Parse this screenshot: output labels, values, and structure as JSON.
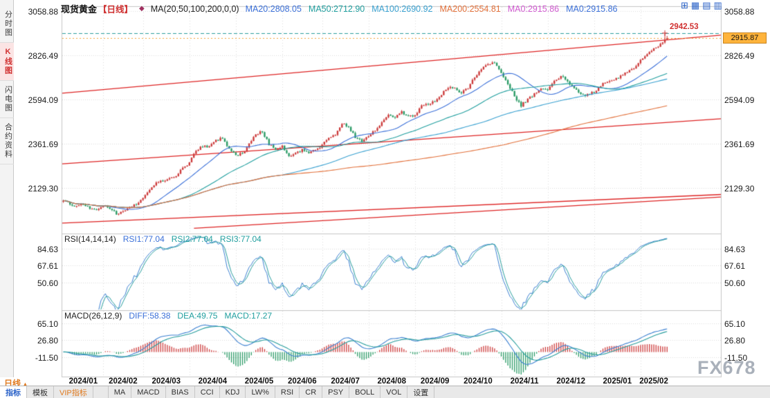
{
  "header": {
    "symbol": "现货黄金",
    "period": "【日线】",
    "indicator_icon": "◆",
    "ma_group_label": "MA(20,50,100,200,0,0)",
    "ma_items": [
      {
        "text": "MA20:2808.05",
        "color": "#3a6fd8"
      },
      {
        "text": "MA50:2712.90",
        "color": "#1f9e9e"
      },
      {
        "text": "MA100:2690.92",
        "color": "#38a0d0"
      },
      {
        "text": "MA200:2554.81",
        "color": "#e2703a"
      },
      {
        "text": "MA0:2915.86",
        "color": "#d05ad0"
      },
      {
        "text": "MA0:2915.86",
        "color": "#3a6fd8"
      }
    ]
  },
  "layout_icons": [
    {
      "name": "layout-single-icon",
      "glyph": "⊞"
    },
    {
      "name": "layout-split-2-icon",
      "glyph": "▦"
    },
    {
      "name": "layout-split-4-icon",
      "glyph": "▤"
    },
    {
      "name": "layout-split-9-icon",
      "glyph": "▥"
    }
  ],
  "sidebar": {
    "items": [
      {
        "label": "分时图",
        "name": "sidebar-item-time-share-chart",
        "active": false
      },
      {
        "label": "K线图",
        "name": "sidebar-item-kline-chart",
        "active": true
      },
      {
        "label": "闪电图",
        "name": "sidebar-item-lightning-chart",
        "active": false
      },
      {
        "label": "合约资料",
        "name": "sidebar-item-contract-info",
        "active": false
      }
    ]
  },
  "price_tag": "2915.87",
  "high_label": "2942.53",
  "watermark": "FX678",
  "bottom_bar": {
    "period_label": "日线",
    "period_arrow": "▲",
    "tabs": [
      {
        "label": "指标",
        "name": "tab-indicators",
        "active": true,
        "vip": false
      },
      {
        "label": "模板",
        "name": "tab-templates",
        "active": false,
        "vip": false
      },
      {
        "label": "VIP指标",
        "name": "tab-vip-indicators",
        "active": false,
        "vip": true
      }
    ],
    "indicator_buttons": [
      {
        "label": "MA",
        "name": "indicator-button-ma"
      },
      {
        "label": "MACD",
        "name": "indicator-button-macd"
      },
      {
        "label": "BIAS",
        "name": "indicator-button-bias"
      },
      {
        "label": "CCI",
        "name": "indicator-button-cci"
      },
      {
        "label": "KDJ",
        "name": "indicator-button-kdj"
      },
      {
        "label": "LW%",
        "name": "indicator-button-lw"
      },
      {
        "label": "RSI",
        "name": "indicator-button-rsi"
      },
      {
        "label": "CR",
        "name": "indicator-button-cr"
      },
      {
        "label": "PSY",
        "name": "indicator-button-psy"
      },
      {
        "label": "BOLL",
        "name": "indicator-button-boll"
      },
      {
        "label": "VOL",
        "name": "indicator-button-vol"
      },
      {
        "label": "设置",
        "name": "settings-button"
      }
    ]
  },
  "chart_data": {
    "type": "candlestick",
    "title": "现货黄金 日线",
    "x_labels": [
      "2024/01",
      "2024/02",
      "2024/03",
      "2024/04",
      "2024/05",
      "2024/06",
      "2024/07",
      "2024/08",
      "2024/09",
      "2024/10",
      "2024/11",
      "2024/12",
      "2025/01",
      "2025/02"
    ],
    "anchors_per_month": [
      6,
      6,
      7,
      7,
      7,
      6,
      7,
      7,
      6,
      7,
      7,
      7,
      7,
      5
    ],
    "close_anchors": [
      2063,
      2045,
      2030,
      2049,
      2025,
      2018,
      2037,
      2025,
      1993,
      2004,
      2024,
      2044,
      2083,
      2126,
      2160,
      2164,
      2178,
      2196,
      2233,
      2258,
      2330,
      2350,
      2344,
      2378,
      2392,
      2338,
      2302,
      2310,
      2360,
      2414,
      2425,
      2360,
      2327,
      2350,
      2293,
      2311,
      2329,
      2318,
      2327,
      2356,
      2392,
      2411,
      2469,
      2445,
      2396,
      2380,
      2403,
      2430,
      2470,
      2508,
      2502,
      2527,
      2503,
      2516,
      2558,
      2569,
      2584,
      2622,
      2658,
      2653,
      2626,
      2656,
      2715,
      2748,
      2780,
      2790,
      2736,
      2680,
      2610,
      2563,
      2595,
      2620,
      2650,
      2643,
      2690,
      2718,
      2692,
      2648,
      2620,
      2617,
      2635,
      2665,
      2690,
      2703,
      2715,
      2740,
      2755,
      2798,
      2835,
      2860,
      2882,
      2915.87
    ],
    "last_close": 2915.87,
    "high_marker": 2942.53,
    "y_axis_main": [
      "3058.88",
      "2826.49",
      "2594.09",
      "2361.69",
      "2129.30"
    ],
    "main_range": [
      1890,
      3080
    ],
    "ma_windows": [
      20,
      50,
      100,
      200
    ],
    "ma_colors": [
      "#3a6fd8",
      "#1f9e9e",
      "#38a0d0",
      "#e2703a"
    ],
    "up_color": "#cc3a3a",
    "down_color": "#2b9b66",
    "trend_color": "#dd2222",
    "high_line_color": "#2a9d9d",
    "cur_line_color": "#f0a030",
    "trend_lines": [
      {
        "x1": 0,
        "p1": 2627,
        "x2": 1,
        "p2": 2932
      },
      {
        "x1": 0,
        "p1": 2256,
        "x2": 1,
        "p2": 2493
      },
      {
        "x1": 0,
        "p1": 1945,
        "x2": 1,
        "p2": 2095
      },
      {
        "x1": 0.2,
        "p1": 1918,
        "x2": 1,
        "p2": 2082
      }
    ],
    "rsi": {
      "title": "RSI(14,14,14)",
      "items": [
        {
          "text": "RSI1:77.04",
          "color": "#3a6fd8"
        },
        {
          "text": "RSI2:77.04",
          "color": "#1f9e9e"
        },
        {
          "text": "RSI3:77.04",
          "color": "#1f9e9e"
        }
      ],
      "axis": [
        "84.63",
        "67.61",
        "50.60"
      ],
      "range": [
        25,
        90
      ]
    },
    "macd": {
      "title": "MACD(26,12,9)",
      "items": [
        {
          "text": "DIFF:58.38",
          "color": "#3a6fd8"
        },
        {
          "text": "DEA:49.75",
          "color": "#1f9e9e"
        },
        {
          "text": "MACD:17.27",
          "color": "#1f9e9e"
        }
      ],
      "axis": [
        "65.10",
        "26.80",
        "-11.50"
      ],
      "range": [
        -53,
        81
      ]
    }
  }
}
